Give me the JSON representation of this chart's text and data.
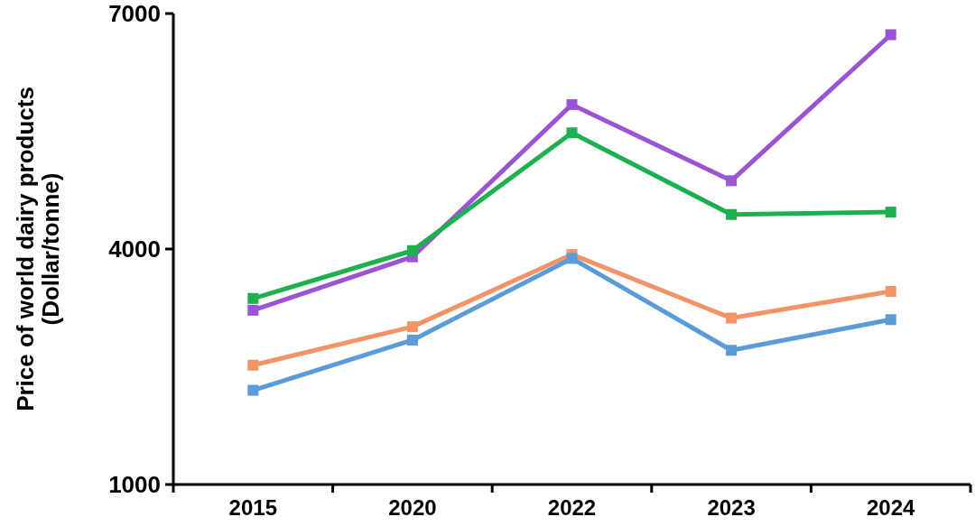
{
  "chart_data": {
    "type": "line",
    "ylabel": "Price of world dairy products\n(Dollar/tonne)",
    "categories": [
      "2015",
      "2020",
      "2022",
      "2023",
      "2024"
    ],
    "series": [
      {
        "color": "#9b55d4",
        "values": [
          3220,
          3900,
          5840,
          4870,
          6730
        ]
      },
      {
        "color": "#1cb14e",
        "values": [
          3370,
          3980,
          5480,
          4440,
          4470
        ]
      },
      {
        "color": "#f39468",
        "values": [
          2520,
          3010,
          3930,
          3120,
          3460
        ]
      },
      {
        "color": "#5b9bd8",
        "values": [
          2200,
          2840,
          3880,
          2710,
          3100
        ]
      }
    ],
    "ylim": [
      1000,
      7000
    ],
    "yticks": [
      1000,
      4000,
      7000
    ],
    "marker": "square",
    "line_style": "solid"
  }
}
